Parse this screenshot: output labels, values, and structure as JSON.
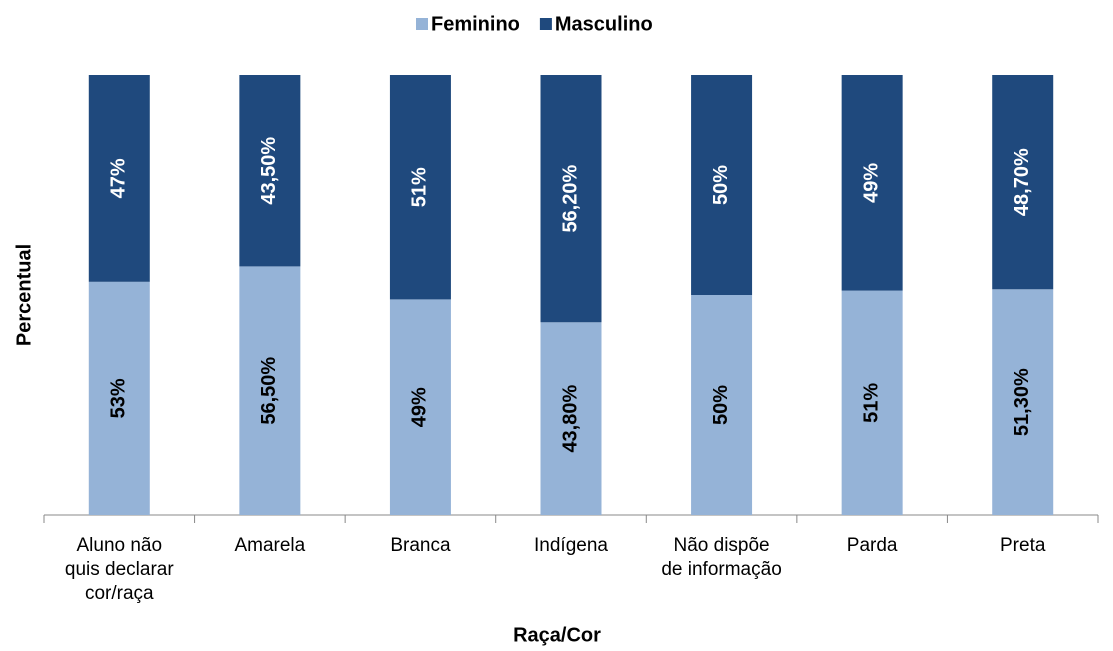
{
  "chart_data": {
    "type": "stacked_bar",
    "x_label": "Raça/Cor",
    "y_label": "Percentual",
    "categories": [
      [
        "Aluno não",
        "quis declarar",
        "cor/raça"
      ],
      [
        "Amarela"
      ],
      [
        "Branca"
      ],
      [
        "Indígena"
      ],
      [
        "Não dispõe",
        "de informação"
      ],
      [
        "Parda"
      ],
      [
        "Preta"
      ]
    ],
    "ylim": [
      0,
      100
    ],
    "series": [
      {
        "name": "Feminino",
        "color": "#95b3d7",
        "label_color": "#000000",
        "values": [
          53,
          56.5,
          49,
          43.8,
          50,
          51,
          51.3
        ],
        "value_labels": [
          "53%",
          "56,50%",
          "49%",
          "43,80%",
          "50%",
          "51%",
          "51,30%"
        ]
      },
      {
        "name": "Masculino",
        "color": "#1f497d",
        "label_color": "#ffffff",
        "values": [
          47,
          43.5,
          51,
          56.2,
          50,
          49,
          48.7
        ],
        "value_labels": [
          "47%",
          "43,50%",
          "51%",
          "56,20%",
          "50%",
          "49%",
          "48,70%"
        ]
      }
    ],
    "legend": "top"
  }
}
